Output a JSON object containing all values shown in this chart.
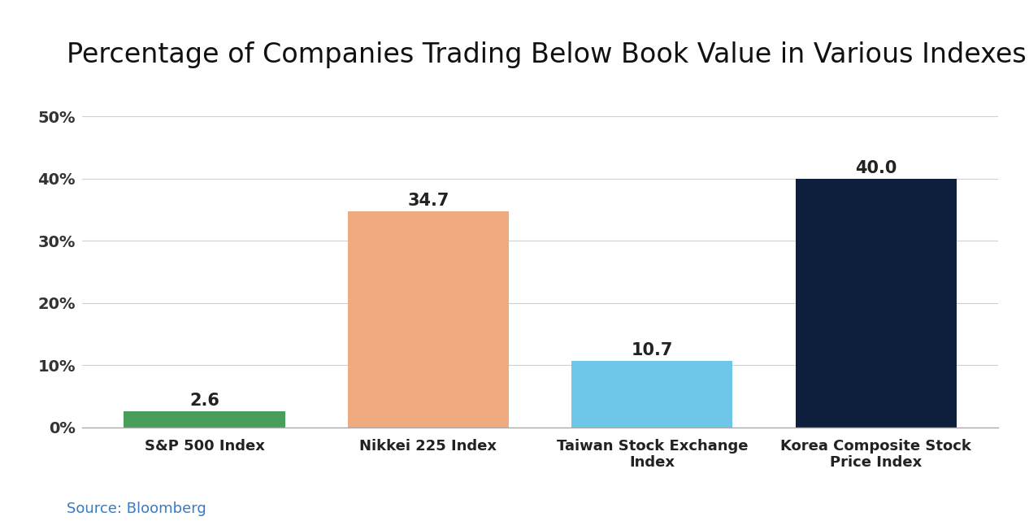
{
  "title": "Percentage of Companies Trading Below Book Value in Various Indexes",
  "categories": [
    "S&P 500 Index",
    "Nikkei 225 Index",
    "Taiwan Stock Exchange\nIndex",
    "Korea Composite Stock\nPrice Index"
  ],
  "values": [
    2.6,
    34.7,
    10.7,
    40.0
  ],
  "bar_colors": [
    "#4a9e5c",
    "#f0aa80",
    "#6ec6e8",
    "#0d1f3c"
  ],
  "value_labels": [
    "2.6",
    "34.7",
    "10.7",
    "40.0"
  ],
  "ylim": [
    0,
    52
  ],
  "yticks": [
    0,
    10,
    20,
    30,
    40,
    50
  ],
  "ytick_labels": [
    "0%",
    "10%",
    "20%",
    "30%",
    "40%",
    "50%"
  ],
  "source_text": "Source: Bloomberg",
  "background_color": "#ffffff",
  "title_fontsize": 24,
  "label_fontsize": 13,
  "value_fontsize": 15,
  "tick_fontsize": 14,
  "source_fontsize": 13,
  "bar_width": 0.72
}
